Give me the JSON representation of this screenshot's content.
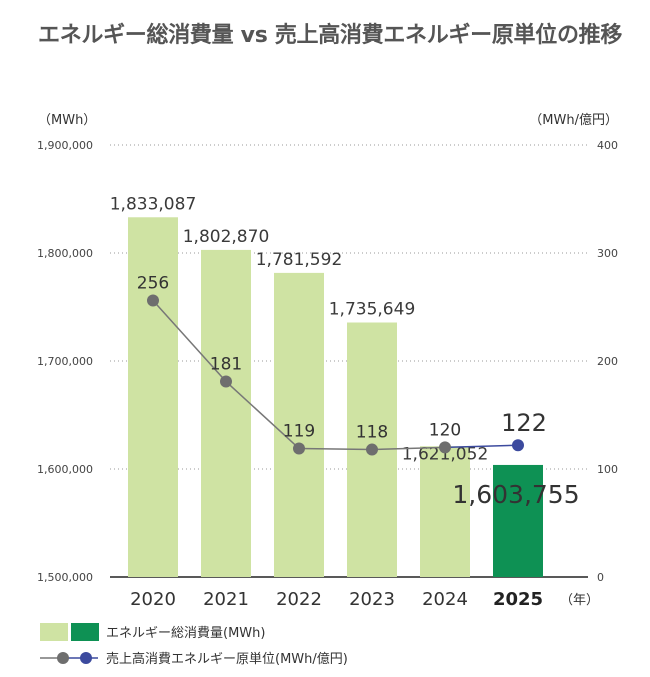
{
  "title": "エネルギー総消費量 vs 売上高消費エネルギー原単位の推移",
  "chart_data": {
    "type": "bar",
    "title": "エネルギー総消費量 vs 売上高消費エネルギー原単位の推移",
    "categories": [
      "2020",
      "2021",
      "2022",
      "2023",
      "2024",
      "2025"
    ],
    "highlight_category": "2025",
    "x_unit": "（年）",
    "y_left_unit": "（MWh）",
    "y_right_unit": "（MWh/億円）",
    "y_left_ticks": [
      "1,900,000",
      "1,800,000",
      "1,700,000",
      "1,600,000",
      "1,500,000"
    ],
    "y_right_ticks": [
      "400",
      "300",
      "200",
      "100",
      "0"
    ],
    "ylim_left": [
      1500000,
      1900000
    ],
    "ylim_right": [
      0,
      400
    ],
    "grid": true,
    "legend_position": "bottom-left",
    "series": [
      {
        "name": "エネルギー総消費量(MWh)",
        "type": "bar",
        "axis": "left",
        "values": [
          1833087,
          1802870,
          1781592,
          1735649,
          1621052,
          1603755
        ],
        "labels": [
          "1,833,087",
          "1,802,870",
          "1,781,592",
          "1,735,649",
          "1,621,052",
          "1,603,755"
        ],
        "color": "#cfe3a3",
        "highlight_color": "#0e9154"
      },
      {
        "name": "売上高消費エネルギー原単位(MWh/億円)",
        "type": "line",
        "axis": "right",
        "values": [
          256,
          181,
          119,
          118,
          120,
          122
        ],
        "labels": [
          "256",
          "181",
          "119",
          "118",
          "120",
          "122"
        ],
        "color": "#777777",
        "highlight_color": "#3c4a9e"
      }
    ]
  }
}
